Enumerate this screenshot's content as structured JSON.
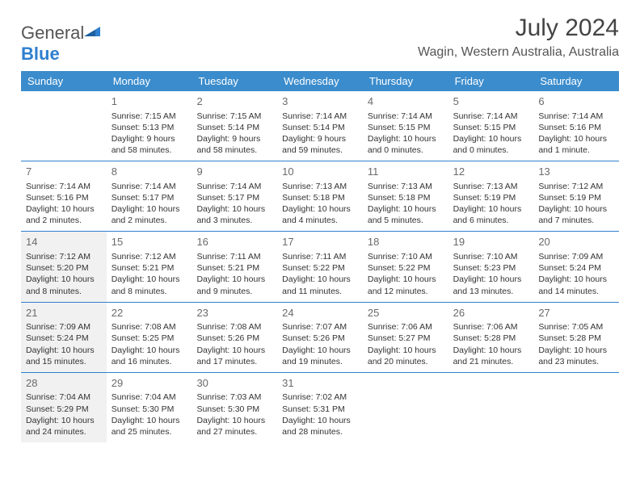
{
  "logo": {
    "general": "General",
    "blue": "Blue",
    "tri_color": "#2f7fcf"
  },
  "title": "July 2024",
  "location": "Wagin, Western Australia, Australia",
  "colors": {
    "header_bg": "#3b8ccc",
    "header_text": "#ffffff",
    "rule": "#2f7fcf",
    "shaded_bg": "#f1f1f1",
    "text": "#333333",
    "daynum": "#6a6a6a"
  },
  "day_names": [
    "Sunday",
    "Monday",
    "Tuesday",
    "Wednesday",
    "Thursday",
    "Friday",
    "Saturday"
  ],
  "days": {
    "1": {
      "sunrise": "Sunrise: 7:15 AM",
      "sunset": "Sunset: 5:13 PM",
      "day1": "Daylight: 9 hours",
      "day2": "and 58 minutes."
    },
    "2": {
      "sunrise": "Sunrise: 7:15 AM",
      "sunset": "Sunset: 5:14 PM",
      "day1": "Daylight: 9 hours",
      "day2": "and 58 minutes."
    },
    "3": {
      "sunrise": "Sunrise: 7:14 AM",
      "sunset": "Sunset: 5:14 PM",
      "day1": "Daylight: 9 hours",
      "day2": "and 59 minutes."
    },
    "4": {
      "sunrise": "Sunrise: 7:14 AM",
      "sunset": "Sunset: 5:15 PM",
      "day1": "Daylight: 10 hours",
      "day2": "and 0 minutes."
    },
    "5": {
      "sunrise": "Sunrise: 7:14 AM",
      "sunset": "Sunset: 5:15 PM",
      "day1": "Daylight: 10 hours",
      "day2": "and 0 minutes."
    },
    "6": {
      "sunrise": "Sunrise: 7:14 AM",
      "sunset": "Sunset: 5:16 PM",
      "day1": "Daylight: 10 hours",
      "day2": "and 1 minute."
    },
    "7": {
      "sunrise": "Sunrise: 7:14 AM",
      "sunset": "Sunset: 5:16 PM",
      "day1": "Daylight: 10 hours",
      "day2": "and 2 minutes."
    },
    "8": {
      "sunrise": "Sunrise: 7:14 AM",
      "sunset": "Sunset: 5:17 PM",
      "day1": "Daylight: 10 hours",
      "day2": "and 2 minutes."
    },
    "9": {
      "sunrise": "Sunrise: 7:14 AM",
      "sunset": "Sunset: 5:17 PM",
      "day1": "Daylight: 10 hours",
      "day2": "and 3 minutes."
    },
    "10": {
      "sunrise": "Sunrise: 7:13 AM",
      "sunset": "Sunset: 5:18 PM",
      "day1": "Daylight: 10 hours",
      "day2": "and 4 minutes."
    },
    "11": {
      "sunrise": "Sunrise: 7:13 AM",
      "sunset": "Sunset: 5:18 PM",
      "day1": "Daylight: 10 hours",
      "day2": "and 5 minutes."
    },
    "12": {
      "sunrise": "Sunrise: 7:13 AM",
      "sunset": "Sunset: 5:19 PM",
      "day1": "Daylight: 10 hours",
      "day2": "and 6 minutes."
    },
    "13": {
      "sunrise": "Sunrise: 7:12 AM",
      "sunset": "Sunset: 5:19 PM",
      "day1": "Daylight: 10 hours",
      "day2": "and 7 minutes."
    },
    "14": {
      "sunrise": "Sunrise: 7:12 AM",
      "sunset": "Sunset: 5:20 PM",
      "day1": "Daylight: 10 hours",
      "day2": "and 8 minutes."
    },
    "15": {
      "sunrise": "Sunrise: 7:12 AM",
      "sunset": "Sunset: 5:21 PM",
      "day1": "Daylight: 10 hours",
      "day2": "and 8 minutes."
    },
    "16": {
      "sunrise": "Sunrise: 7:11 AM",
      "sunset": "Sunset: 5:21 PM",
      "day1": "Daylight: 10 hours",
      "day2": "and 9 minutes."
    },
    "17": {
      "sunrise": "Sunrise: 7:11 AM",
      "sunset": "Sunset: 5:22 PM",
      "day1": "Daylight: 10 hours",
      "day2": "and 11 minutes."
    },
    "18": {
      "sunrise": "Sunrise: 7:10 AM",
      "sunset": "Sunset: 5:22 PM",
      "day1": "Daylight: 10 hours",
      "day2": "and 12 minutes."
    },
    "19": {
      "sunrise": "Sunrise: 7:10 AM",
      "sunset": "Sunset: 5:23 PM",
      "day1": "Daylight: 10 hours",
      "day2": "and 13 minutes."
    },
    "20": {
      "sunrise": "Sunrise: 7:09 AM",
      "sunset": "Sunset: 5:24 PM",
      "day1": "Daylight: 10 hours",
      "day2": "and 14 minutes."
    },
    "21": {
      "sunrise": "Sunrise: 7:09 AM",
      "sunset": "Sunset: 5:24 PM",
      "day1": "Daylight: 10 hours",
      "day2": "and 15 minutes."
    },
    "22": {
      "sunrise": "Sunrise: 7:08 AM",
      "sunset": "Sunset: 5:25 PM",
      "day1": "Daylight: 10 hours",
      "day2": "and 16 minutes."
    },
    "23": {
      "sunrise": "Sunrise: 7:08 AM",
      "sunset": "Sunset: 5:26 PM",
      "day1": "Daylight: 10 hours",
      "day2": "and 17 minutes."
    },
    "24": {
      "sunrise": "Sunrise: 7:07 AM",
      "sunset": "Sunset: 5:26 PM",
      "day1": "Daylight: 10 hours",
      "day2": "and 19 minutes."
    },
    "25": {
      "sunrise": "Sunrise: 7:06 AM",
      "sunset": "Sunset: 5:27 PM",
      "day1": "Daylight: 10 hours",
      "day2": "and 20 minutes."
    },
    "26": {
      "sunrise": "Sunrise: 7:06 AM",
      "sunset": "Sunset: 5:28 PM",
      "day1": "Daylight: 10 hours",
      "day2": "and 21 minutes."
    },
    "27": {
      "sunrise": "Sunrise: 7:05 AM",
      "sunset": "Sunset: 5:28 PM",
      "day1": "Daylight: 10 hours",
      "day2": "and 23 minutes."
    },
    "28": {
      "sunrise": "Sunrise: 7:04 AM",
      "sunset": "Sunset: 5:29 PM",
      "day1": "Daylight: 10 hours",
      "day2": "and 24 minutes."
    },
    "29": {
      "sunrise": "Sunrise: 7:04 AM",
      "sunset": "Sunset: 5:30 PM",
      "day1": "Daylight: 10 hours",
      "day2": "and 25 minutes."
    },
    "30": {
      "sunrise": "Sunrise: 7:03 AM",
      "sunset": "Sunset: 5:30 PM",
      "day1": "Daylight: 10 hours",
      "day2": "and 27 minutes."
    },
    "31": {
      "sunrise": "Sunrise: 7:02 AM",
      "sunset": "Sunset: 5:31 PM",
      "day1": "Daylight: 10 hours",
      "day2": "and 28 minutes."
    }
  },
  "weeks": [
    [
      null,
      1,
      2,
      3,
      4,
      5,
      6
    ],
    [
      7,
      8,
      9,
      10,
      11,
      12,
      13
    ],
    [
      14,
      15,
      16,
      17,
      18,
      19,
      20
    ],
    [
      21,
      22,
      23,
      24,
      25,
      26,
      27
    ],
    [
      28,
      29,
      30,
      31,
      null,
      null,
      null
    ]
  ],
  "shaded_days": [
    14,
    21,
    28
  ]
}
